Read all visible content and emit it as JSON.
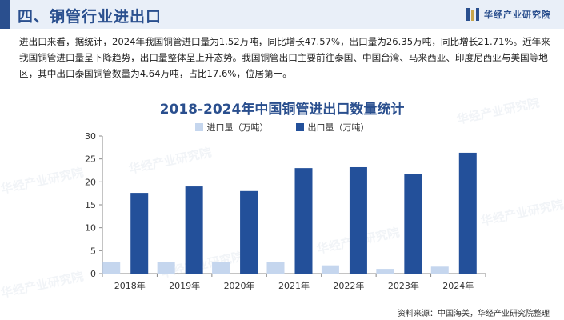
{
  "header": {
    "title": "四、铜管行业进出口",
    "brand": "华经产业研究院"
  },
  "intro": "进出口来看，据统计，2024年我国铜管进口量为1.52万吨，同比增长47.57%，出口量为26.35万吨，同比增长21.71%。近年来我国铜管进口量呈下降趋势，出口量整体呈上升态势。我国铜管出口主要前往泰国、中国台湾、马来西亚、印度尼西亚与美国等地区，其中出口泰国铜管数量为4.64万吨，占比17.6%，位居第一。",
  "source": "资料来源：中国海关，华经产业研究院整理",
  "watermark": "华经产业研究院",
  "colors": {
    "import": "#c5d6ee",
    "export": "#23509a",
    "accent": "#2a4f8e"
  },
  "chart_data": {
    "type": "bar",
    "title": "2018-2024年中国铜管进出口数量统计",
    "categories": [
      "2018年",
      "2019年",
      "2020年",
      "2021年",
      "2022年",
      "2023年",
      "2024年"
    ],
    "series": [
      {
        "name": "进口量（万吨）",
        "values": [
          2.5,
          2.6,
          2.6,
          2.5,
          1.8,
          1.03,
          1.52
        ]
      },
      {
        "name": "出口量（万吨）",
        "values": [
          17.6,
          19.0,
          18.0,
          23.0,
          23.2,
          21.65,
          26.35
        ]
      }
    ],
    "ylim": [
      0,
      30
    ],
    "yticks": [
      0,
      5,
      10,
      15,
      20,
      25,
      30
    ],
    "legend": "top-center",
    "grid": false
  }
}
